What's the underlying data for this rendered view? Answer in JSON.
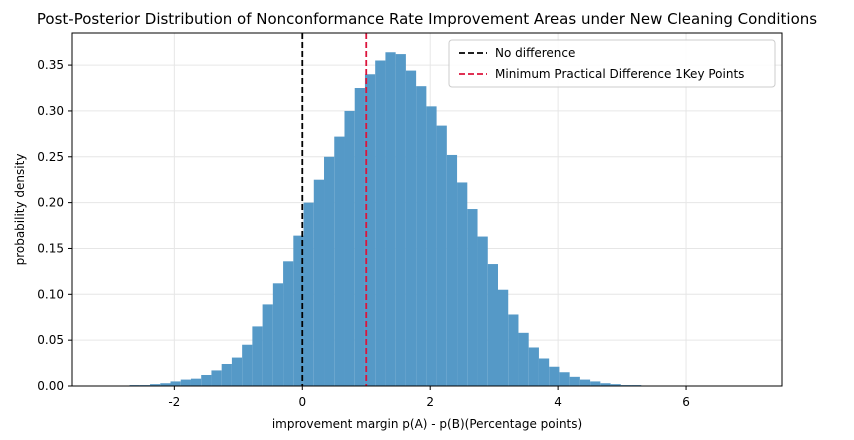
{
  "chart_data": {
    "type": "histogram",
    "title": "Post-Posterior Distribution of Nonconformance Rate Improvement Areas under New Cleaning Conditions",
    "xlabel": "improvement margin p(A) - p(B)(Percentage points)",
    "ylabel": "probability density",
    "xlim": [
      -3.6,
      7.5
    ],
    "ylim": [
      0,
      0.385
    ],
    "xticks": [
      -2,
      0,
      2,
      4,
      6
    ],
    "xtick_labels": [
      "-2",
      "0",
      "2",
      "4",
      "6"
    ],
    "yticks": [
      0.0,
      0.05,
      0.1,
      0.15,
      0.2,
      0.25,
      0.3,
      0.35
    ],
    "ytick_labels": [
      "0.00",
      "0.05",
      "0.10",
      "0.15",
      "0.20",
      "0.25",
      "0.30",
      "0.35"
    ],
    "grid": true,
    "legend_position": "top-right",
    "bar_color": "#5599c7",
    "bins": {
      "start": -2.7,
      "width": 0.16,
      "density": [
        0.001,
        0.001,
        0.002,
        0.003,
        0.005,
        0.007,
        0.008,
        0.012,
        0.017,
        0.024,
        0.031,
        0.045,
        0.065,
        0.089,
        0.112,
        0.136,
        0.164,
        0.2,
        0.225,
        0.25,
        0.272,
        0.3,
        0.325,
        0.34,
        0.355,
        0.364,
        0.362,
        0.344,
        0.327,
        0.305,
        0.284,
        0.252,
        0.222,
        0.193,
        0.163,
        0.133,
        0.105,
        0.078,
        0.058,
        0.042,
        0.03,
        0.021,
        0.015,
        0.01,
        0.007,
        0.005,
        0.003,
        0.002,
        0.001,
        0.001,
        0.0005,
        0.0003,
        0.0002,
        0.0001,
        0.0001,
        0.0001
      ]
    },
    "vlines": [
      {
        "x": 0,
        "color": "#000000",
        "label": "No difference"
      },
      {
        "x": 1,
        "color": "#dc143c",
        "label": "Minimum Practical Difference 1Key Points"
      }
    ]
  }
}
